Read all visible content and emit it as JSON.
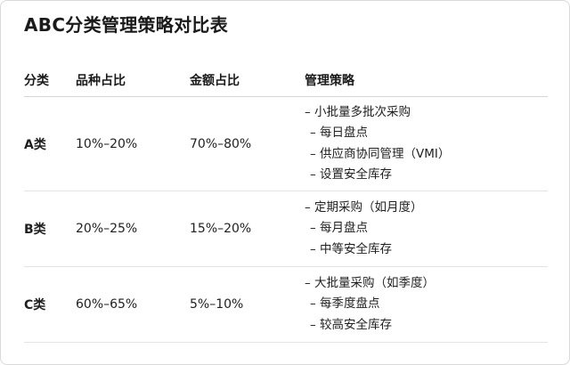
{
  "title": "ABC分类管理策略对比表",
  "headers": [
    "分类",
    "品种占比",
    "金额占比",
    "管理策略"
  ],
  "rows": [
    {
      "category": "A类",
      "item_ratio": "10%–20%",
      "amount_ratio": "70%–80%",
      "strategies": [
        "– 小批量多批次采购",
        "– 每日盘点",
        "– 供应商协同管理（VMI）",
        "– 设置安全库存"
      ]
    },
    {
      "category": "B类",
      "item_ratio": "20%–25%",
      "amount_ratio": "15%–20%",
      "strategies": [
        "– 定期采购（如月度）",
        "– 每月盘点",
        "– 中等安全库存"
      ]
    },
    {
      "category": "C类",
      "item_ratio": "60%–65%",
      "amount_ratio": "5%–10%",
      "strategies": [
        "– 大批量采购（如季度）",
        "– 每季度盘点",
        "– 较高安全库存"
      ]
    }
  ]
}
